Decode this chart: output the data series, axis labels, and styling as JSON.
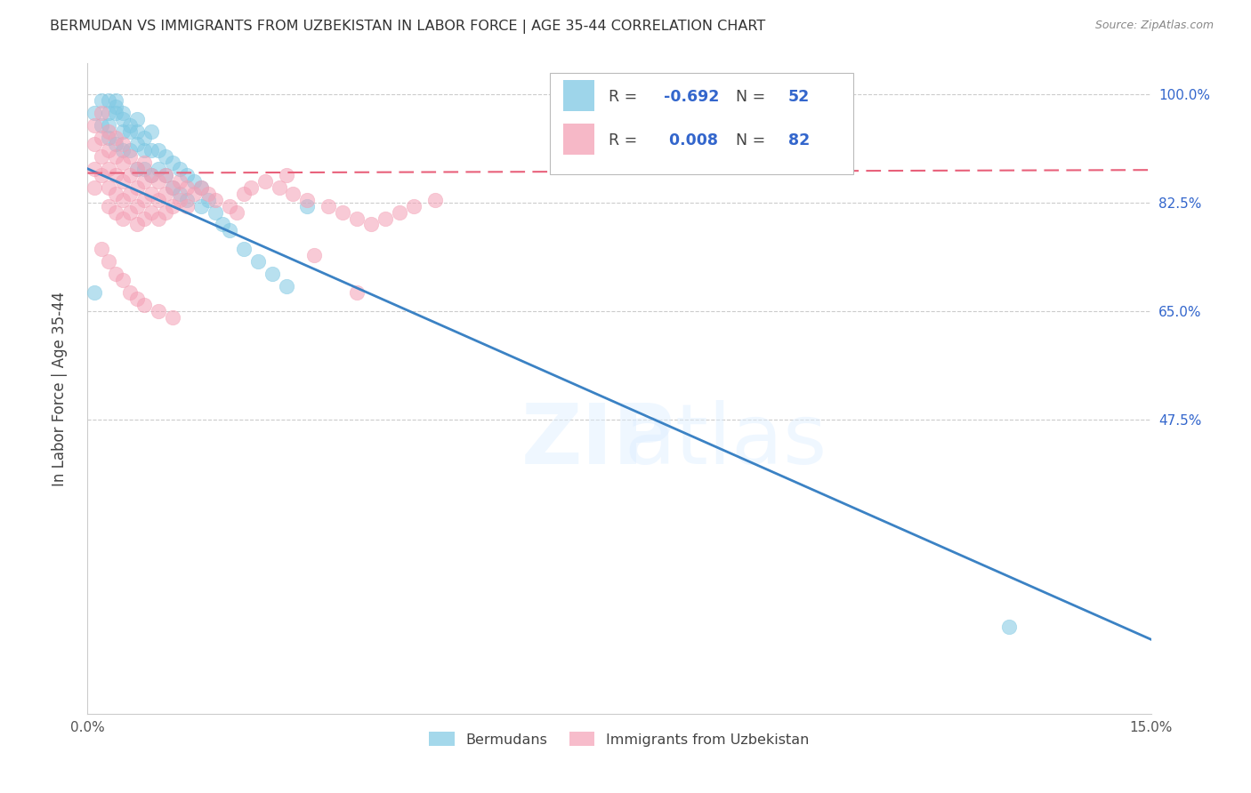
{
  "title": "BERMUDAN VS IMMIGRANTS FROM UZBEKISTAN IN LABOR FORCE | AGE 35-44 CORRELATION CHART",
  "source": "Source: ZipAtlas.com",
  "ylabel": "In Labor Force | Age 35-44",
  "blue_color": "#7ec8e3",
  "pink_color": "#f4a0b5",
  "blue_line_color": "#3b82c4",
  "pink_line_color": "#e8607a",
  "legend_text_color": "#3366cc",
  "blue_r": -0.692,
  "blue_n": 52,
  "pink_r": 0.008,
  "pink_n": 82,
  "blue_line_x0": 0.0,
  "blue_line_y0": 0.88,
  "blue_line_x1": 0.15,
  "blue_line_y1": 0.12,
  "pink_line_x0": 0.0,
  "pink_line_y0": 0.873,
  "pink_line_x1": 0.15,
  "pink_line_y1": 0.878,
  "blue_scatter_x": [
    0.001,
    0.002,
    0.002,
    0.003,
    0.003,
    0.003,
    0.003,
    0.004,
    0.004,
    0.004,
    0.004,
    0.005,
    0.005,
    0.005,
    0.005,
    0.006,
    0.006,
    0.006,
    0.007,
    0.007,
    0.007,
    0.007,
    0.008,
    0.008,
    0.008,
    0.009,
    0.009,
    0.009,
    0.01,
    0.01,
    0.011,
    0.011,
    0.012,
    0.012,
    0.013,
    0.013,
    0.014,
    0.014,
    0.015,
    0.016,
    0.016,
    0.017,
    0.018,
    0.019,
    0.02,
    0.022,
    0.024,
    0.026,
    0.028,
    0.031,
    0.13,
    0.001
  ],
  "blue_scatter_y": [
    0.97,
    0.99,
    0.95,
    0.99,
    0.97,
    0.95,
    0.93,
    0.99,
    0.98,
    0.97,
    0.92,
    0.97,
    0.96,
    0.94,
    0.91,
    0.95,
    0.94,
    0.91,
    0.96,
    0.94,
    0.92,
    0.88,
    0.93,
    0.91,
    0.88,
    0.94,
    0.91,
    0.87,
    0.91,
    0.88,
    0.9,
    0.87,
    0.89,
    0.85,
    0.88,
    0.84,
    0.87,
    0.83,
    0.86,
    0.85,
    0.82,
    0.83,
    0.81,
    0.79,
    0.78,
    0.75,
    0.73,
    0.71,
    0.69,
    0.82,
    0.14,
    0.68
  ],
  "pink_scatter_x": [
    0.001,
    0.001,
    0.001,
    0.001,
    0.002,
    0.002,
    0.002,
    0.002,
    0.003,
    0.003,
    0.003,
    0.003,
    0.003,
    0.004,
    0.004,
    0.004,
    0.004,
    0.004,
    0.005,
    0.005,
    0.005,
    0.005,
    0.005,
    0.006,
    0.006,
    0.006,
    0.006,
    0.007,
    0.007,
    0.007,
    0.007,
    0.008,
    0.008,
    0.008,
    0.008,
    0.009,
    0.009,
    0.009,
    0.01,
    0.01,
    0.01,
    0.011,
    0.011,
    0.011,
    0.012,
    0.012,
    0.013,
    0.013,
    0.014,
    0.014,
    0.015,
    0.016,
    0.017,
    0.018,
    0.02,
    0.021,
    0.022,
    0.023,
    0.025,
    0.027,
    0.029,
    0.031,
    0.034,
    0.036,
    0.038,
    0.04,
    0.042,
    0.044,
    0.046,
    0.049,
    0.002,
    0.003,
    0.004,
    0.005,
    0.006,
    0.007,
    0.008,
    0.01,
    0.012,
    0.028,
    0.032,
    0.038
  ],
  "pink_scatter_y": [
    0.95,
    0.92,
    0.88,
    0.85,
    0.97,
    0.93,
    0.9,
    0.87,
    0.94,
    0.91,
    0.88,
    0.85,
    0.82,
    0.93,
    0.9,
    0.87,
    0.84,
    0.81,
    0.92,
    0.89,
    0.86,
    0.83,
    0.8,
    0.9,
    0.87,
    0.84,
    0.81,
    0.88,
    0.85,
    0.82,
    0.79,
    0.89,
    0.86,
    0.83,
    0.8,
    0.87,
    0.84,
    0.81,
    0.86,
    0.83,
    0.8,
    0.87,
    0.84,
    0.81,
    0.85,
    0.82,
    0.86,
    0.83,
    0.85,
    0.82,
    0.84,
    0.85,
    0.84,
    0.83,
    0.82,
    0.81,
    0.84,
    0.85,
    0.86,
    0.85,
    0.84,
    0.83,
    0.82,
    0.81,
    0.8,
    0.79,
    0.8,
    0.81,
    0.82,
    0.83,
    0.75,
    0.73,
    0.71,
    0.7,
    0.68,
    0.67,
    0.66,
    0.65,
    0.64,
    0.87,
    0.74,
    0.68
  ],
  "xlim": [
    0.0,
    0.15
  ],
  "ylim": [
    0.0,
    1.05
  ],
  "ytick_positions": [
    0.475,
    0.65,
    0.825,
    1.0
  ],
  "ytick_labels": [
    "47.5%",
    "65.0%",
    "82.5%",
    "100.0%"
  ],
  "xtick_positions": [
    0.0,
    0.03,
    0.06,
    0.09,
    0.12,
    0.15
  ],
  "xtick_labels": [
    "0.0%",
    "",
    "",
    "",
    "",
    "15.0%"
  ]
}
